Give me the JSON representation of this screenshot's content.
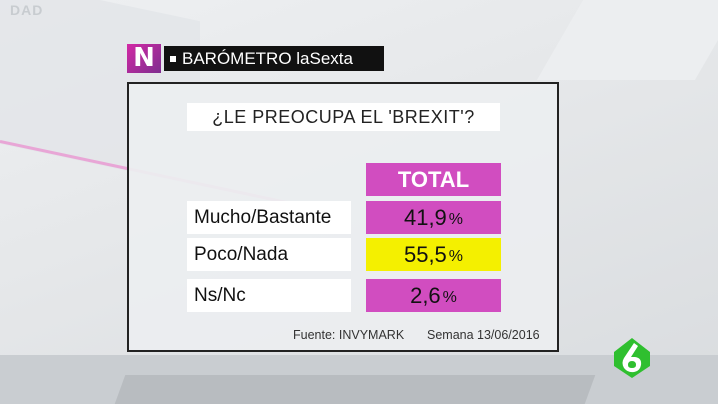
{
  "header": {
    "brand_logo_letter": "N",
    "title": "BARÓMETRO laSexta"
  },
  "background": {
    "ghost_text": "DAD"
  },
  "poll": {
    "question": "¿LE PREOCUPA EL 'BREXIT'?",
    "column_header": "TOTAL",
    "percent_sign": "%",
    "rows": [
      {
        "label": "Mucho/Bastante",
        "value": "41,9",
        "color": "#d14dc0"
      },
      {
        "label": "Poco/Nada",
        "value": "55,5",
        "color": "#f4f000"
      },
      {
        "label": "Ns/Nc",
        "value": "2,6",
        "color": "#d14dc0"
      }
    ],
    "source": "Fuente: INVYMARK",
    "date": "Semana 13/06/2016"
  },
  "chart_data": {
    "type": "table",
    "title": "¿LE PREOCUPA EL 'BREXIT'?",
    "columns": [
      "TOTAL"
    ],
    "categories": [
      "Mucho/Bastante",
      "Poco/Nada",
      "Ns/Nc"
    ],
    "values": [
      41.9,
      55.5,
      2.6
    ],
    "unit": "%"
  },
  "channel_logo": {
    "name": "laSexta-6-icon",
    "colors": [
      "#2fbf2f",
      "#ffffff"
    ]
  }
}
